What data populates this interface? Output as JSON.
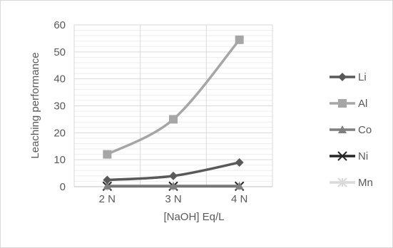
{
  "chart_data": {
    "type": "line",
    "title": "",
    "xlabel": "[NaOH] Eq/L",
    "ylabel": "Leaching performance",
    "categories": [
      "2 N",
      "3 N",
      "4 N"
    ],
    "ylim": [
      0,
      60
    ],
    "yticks": [
      "0",
      "10",
      "20",
      "30",
      "40",
      "50",
      "60"
    ],
    "grid": true,
    "legend_position": "right",
    "series": [
      {
        "name": "Li",
        "values": [
          2.5,
          4,
          9
        ],
        "color": "#595959",
        "marker": "diamond"
      },
      {
        "name": "Al",
        "values": [
          12,
          25,
          54.5
        ],
        "color": "#a6a6a6",
        "marker": "square"
      },
      {
        "name": "Co",
        "values": [
          0.3,
          0.3,
          0.3
        ],
        "color": "#7f7f7f",
        "marker": "triangle"
      },
      {
        "name": "Ni",
        "values": [
          0.2,
          0.2,
          0.2
        ],
        "color": "#262626",
        "marker": "x"
      },
      {
        "name": "Mn",
        "values": [
          0.1,
          0.1,
          0.1
        ],
        "color": "#d9d9d9",
        "marker": "star"
      }
    ]
  }
}
